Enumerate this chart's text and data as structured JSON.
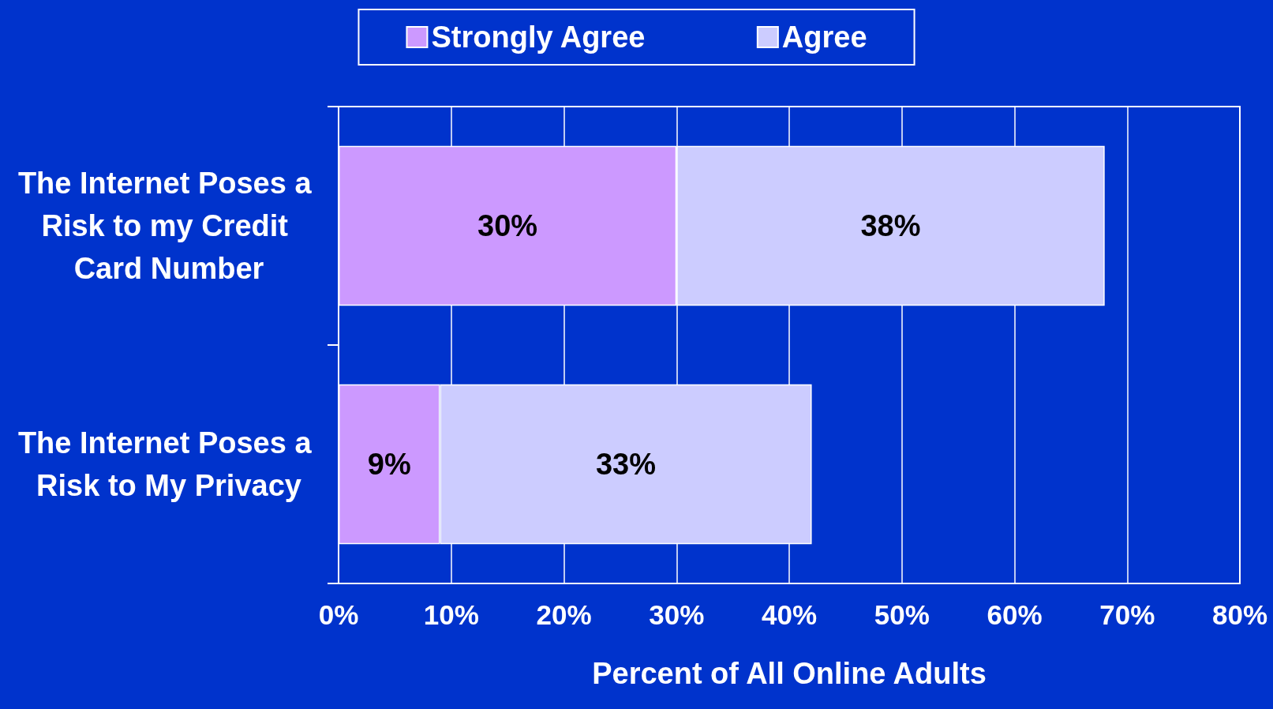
{
  "chart_data": {
    "type": "bar",
    "orientation": "horizontal",
    "stacked": true,
    "xlabel": "Percent of All Online Adults",
    "categories": [
      "The Internet Poses a Risk to my Credit Card Number",
      "The Internet Poses a Risk to My Privacy"
    ],
    "series": [
      {
        "name": "Strongly Agree",
        "color": "#cc99ff",
        "values": [
          30,
          9
        ],
        "value_labels": [
          "30%",
          "9%"
        ]
      },
      {
        "name": "Agree",
        "color": "#ccccff",
        "values": [
          38,
          33
        ],
        "value_labels": [
          "38%",
          "33%"
        ]
      }
    ],
    "xlim": [
      0,
      80
    ],
    "xticks": [
      {
        "value": 0,
        "label": "0%"
      },
      {
        "value": 10,
        "label": "10%"
      },
      {
        "value": 20,
        "label": "20%"
      },
      {
        "value": 30,
        "label": "30%"
      },
      {
        "value": 40,
        "label": "40%"
      },
      {
        "value": 50,
        "label": "50%"
      },
      {
        "value": 60,
        "label": "60%"
      },
      {
        "value": 70,
        "label": "70%"
      },
      {
        "value": 80,
        "label": "80%"
      }
    ],
    "grid": "x",
    "legend": "top"
  }
}
